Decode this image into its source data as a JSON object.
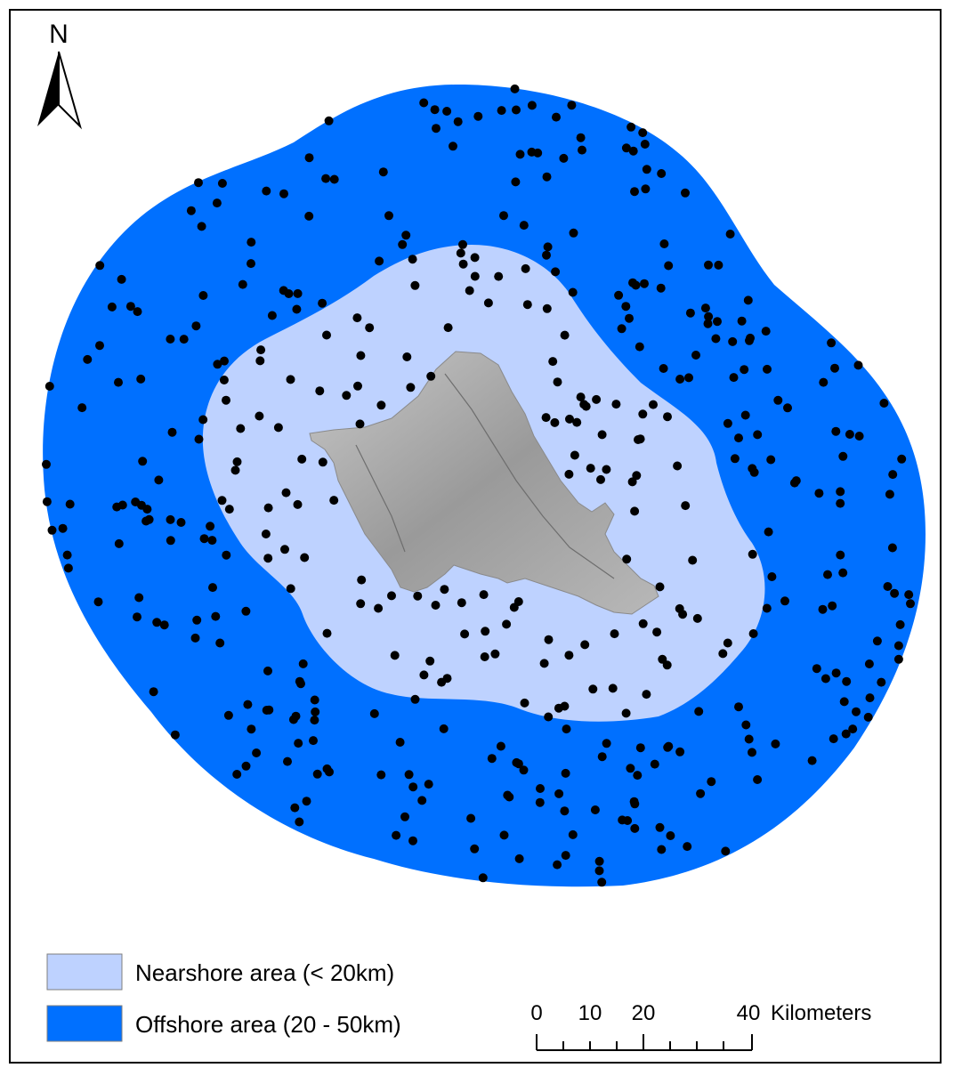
{
  "north_arrow": {
    "label": "N",
    "icon": "north-arrow-icon"
  },
  "legend": {
    "items": [
      {
        "label": "Nearshore area (< 20km)",
        "color": "#bed2ff"
      },
      {
        "label": "Offshore area (20 - 50km)",
        "color": "#0070ff"
      }
    ]
  },
  "scale_bar": {
    "ticks": [
      "0",
      "10",
      "20",
      "40"
    ],
    "unit": "Kilometers"
  },
  "colors": {
    "nearshore": "#bed2ff",
    "offshore": "#0070ff",
    "island": "#9c9c9c",
    "points": "#000000",
    "frame": "#000000"
  }
}
